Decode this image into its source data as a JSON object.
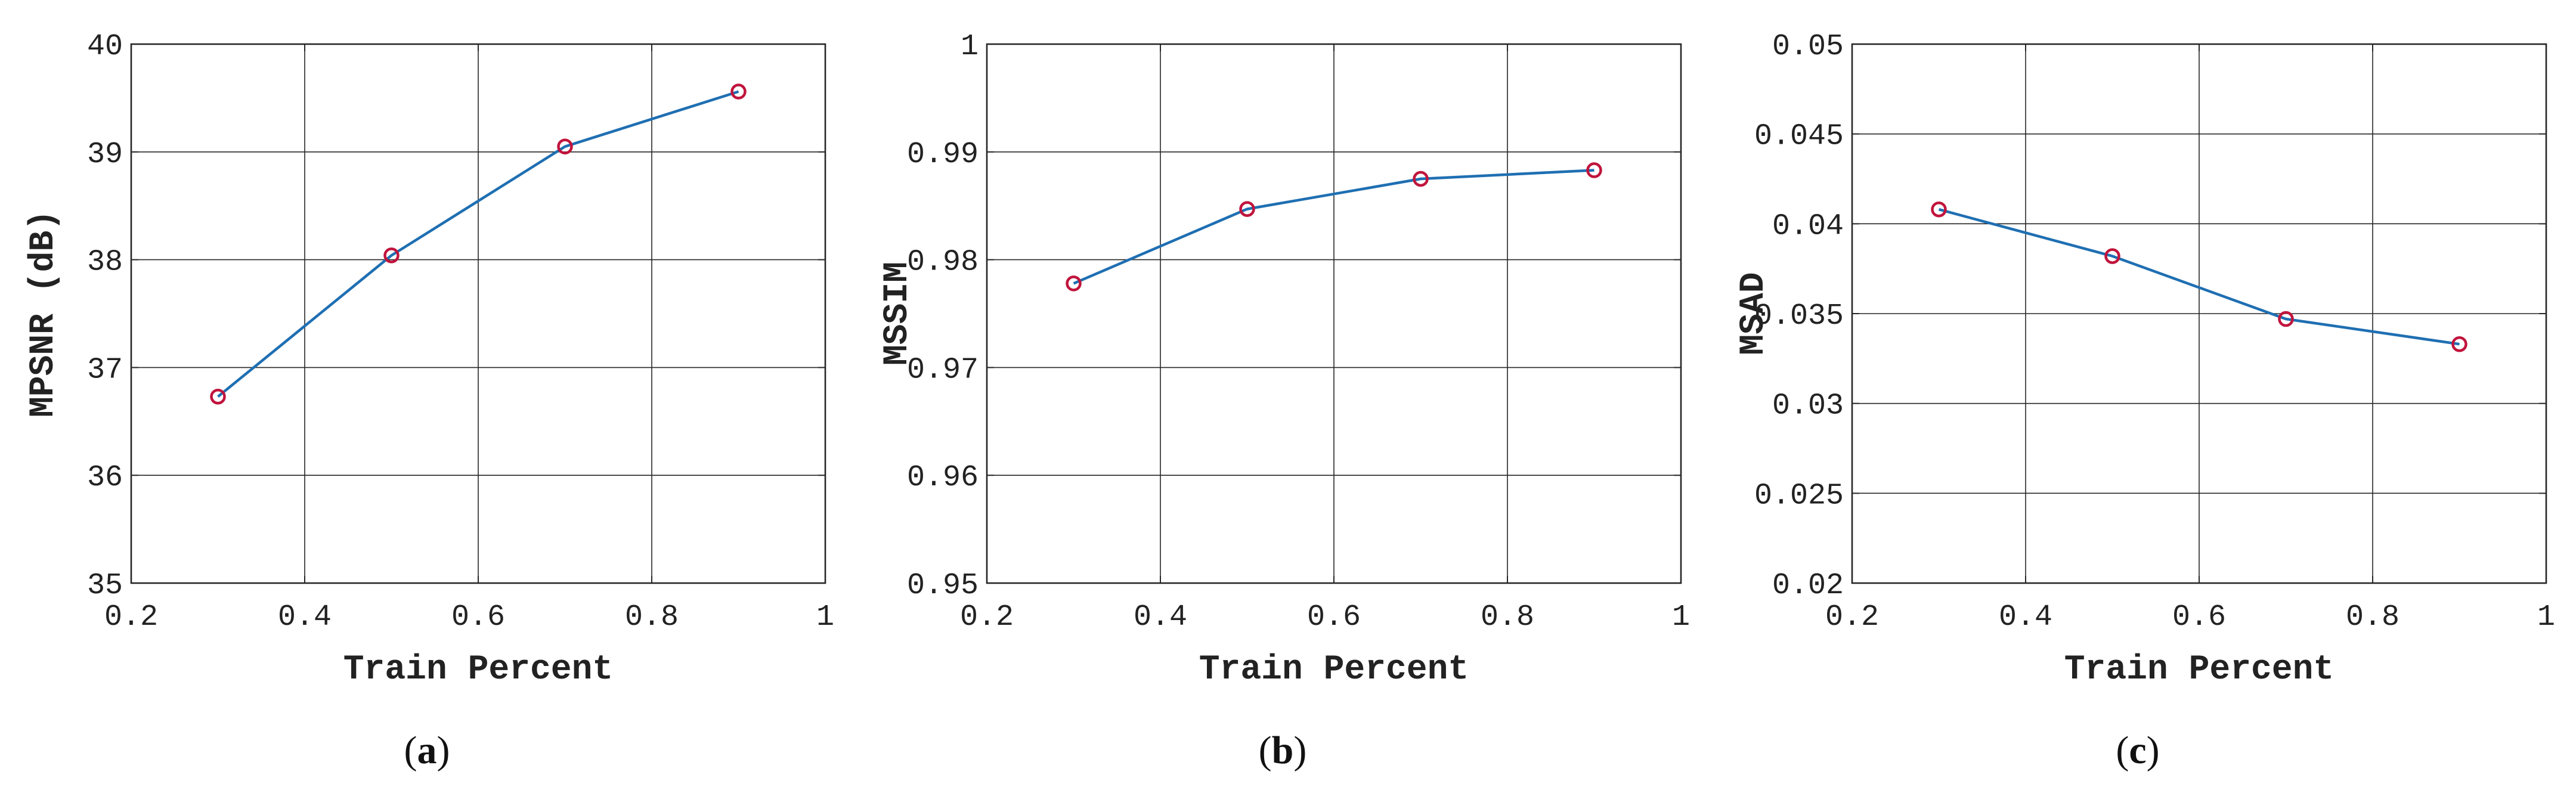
{
  "chart_data": [
    {
      "type": "line",
      "caption_letter": "a",
      "xlabel": "Train Percent",
      "ylabel": "MPSNR (dB)",
      "xlim": [
        0.2,
        1
      ],
      "ylim": [
        35,
        40
      ],
      "xticks": [
        0.2,
        0.4,
        0.6,
        0.8,
        1
      ],
      "xtick_labels": [
        "0.2",
        "0.4",
        "0.6",
        "0.8",
        "1"
      ],
      "yticks": [
        35,
        36,
        37,
        38,
        39,
        40
      ],
      "ytick_labels": [
        "35",
        "36",
        "37",
        "38",
        "39",
        "40"
      ],
      "grid": true,
      "line_color": "#1f6fb2",
      "marker_color": "#c0143c",
      "marker": "circle",
      "series": [
        {
          "x": [
            0.3,
            0.5,
            0.7,
            0.9
          ],
          "values": [
            36.73,
            38.04,
            39.05,
            39.56
          ]
        }
      ]
    },
    {
      "type": "line",
      "caption_letter": "b",
      "xlabel": "Train Percent",
      "ylabel": "MSSIM",
      "xlim": [
        0.2,
        1
      ],
      "ylim": [
        0.95,
        1
      ],
      "xticks": [
        0.2,
        0.4,
        0.6,
        0.8,
        1
      ],
      "xtick_labels": [
        "0.2",
        "0.4",
        "0.6",
        "0.8",
        "1"
      ],
      "yticks": [
        0.95,
        0.96,
        0.97,
        0.98,
        0.99,
        1
      ],
      "ytick_labels": [
        "0.95",
        "0.96",
        "0.97",
        "0.98",
        "0.99",
        "1"
      ],
      "grid": true,
      "line_color": "#1f6fb2",
      "marker_color": "#c0143c",
      "marker": "circle",
      "series": [
        {
          "x": [
            0.3,
            0.5,
            0.7,
            0.9
          ],
          "values": [
            0.9778,
            0.9847,
            0.9875,
            0.9883
          ]
        }
      ]
    },
    {
      "type": "line",
      "caption_letter": "c",
      "xlabel": "Train Percent",
      "ylabel": "MSAD",
      "xlim": [
        0.2,
        1
      ],
      "ylim": [
        0.02,
        0.05
      ],
      "xticks": [
        0.2,
        0.4,
        0.6,
        0.8,
        1
      ],
      "xtick_labels": [
        "0.2",
        "0.4",
        "0.6",
        "0.8",
        "1"
      ],
      "yticks": [
        0.02,
        0.025,
        0.03,
        0.035,
        0.04,
        0.045,
        0.05
      ],
      "ytick_labels": [
        "0.02",
        "0.025",
        "0.03",
        "0.035",
        "0.04",
        "0.045",
        "0.05"
      ],
      "grid": true,
      "line_color": "#1f6fb2",
      "marker_color": "#c0143c",
      "marker": "circle",
      "series": [
        {
          "x": [
            0.3,
            0.5,
            0.7,
            0.9
          ],
          "values": [
            0.0408,
            0.0382,
            0.0347,
            0.0333
          ]
        }
      ]
    }
  ]
}
